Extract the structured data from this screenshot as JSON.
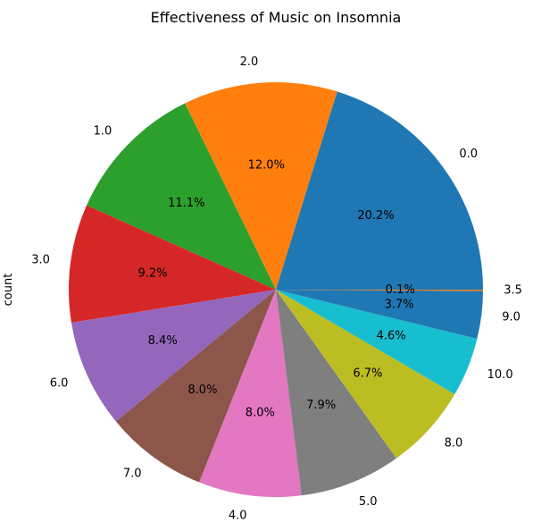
{
  "chart_data": {
    "type": "pie",
    "title": "Effectiveness of Music on Insomnia",
    "ylabel": "count",
    "start_angle_deg": 0,
    "direction": "counterclockwise",
    "slices": [
      {
        "label": "0.0",
        "percent": 20.2,
        "pct_label": "20.2%",
        "color": "#1f77b4"
      },
      {
        "label": "2.0",
        "percent": 12.0,
        "pct_label": "12.0%",
        "color": "#ff7f0e"
      },
      {
        "label": "1.0",
        "percent": 11.1,
        "pct_label": "11.1%",
        "color": "#2ca02c"
      },
      {
        "label": "3.0",
        "percent": 9.2,
        "pct_label": "9.2%",
        "color": "#d62728"
      },
      {
        "label": "6.0",
        "percent": 8.4,
        "pct_label": "8.4%",
        "color": "#9467bd"
      },
      {
        "label": "7.0",
        "percent": 8.0,
        "pct_label": "8.0%",
        "color": "#8c564b"
      },
      {
        "label": "4.0",
        "percent": 8.0,
        "pct_label": "8.0%",
        "color": "#e377c2"
      },
      {
        "label": "5.0",
        "percent": 7.9,
        "pct_label": "7.9%",
        "color": "#7f7f7f"
      },
      {
        "label": "8.0",
        "percent": 6.7,
        "pct_label": "6.7%",
        "color": "#bcbd22"
      },
      {
        "label": "10.0",
        "percent": 4.6,
        "pct_label": "4.6%",
        "color": "#17becf"
      },
      {
        "label": "9.0",
        "percent": 3.7,
        "pct_label": "3.7%",
        "color": "#1f77b4"
      },
      {
        "label": "3.5",
        "percent": 0.1,
        "pct_label": "0.1%",
        "color": "#ff7f0e"
      }
    ]
  }
}
